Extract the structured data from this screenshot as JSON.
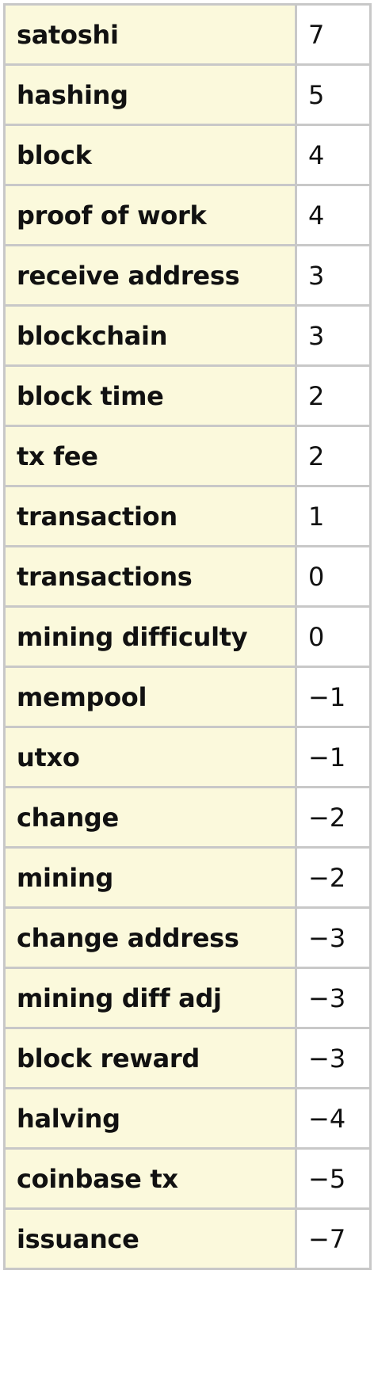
{
  "table": {
    "rows": [
      {
        "term": "satoshi",
        "score": "7"
      },
      {
        "term": "hashing",
        "score": "5"
      },
      {
        "term": "block",
        "score": "4"
      },
      {
        "term": "proof of work",
        "score": "4"
      },
      {
        "term": "receive address",
        "score": "3"
      },
      {
        "term": "blockchain",
        "score": "3"
      },
      {
        "term": "block time",
        "score": "2"
      },
      {
        "term": "tx fee",
        "score": "2"
      },
      {
        "term": "transaction",
        "score": "1"
      },
      {
        "term": "transactions",
        "score": "0"
      },
      {
        "term": "mining difficulty",
        "score": "0"
      },
      {
        "term": "mempool",
        "score": "−1"
      },
      {
        "term": "utxo",
        "score": "−1"
      },
      {
        "term": "change",
        "score": "−2"
      },
      {
        "term": "mining",
        "score": "−2"
      },
      {
        "term": "change address",
        "score": "−3"
      },
      {
        "term": "mining diff adj",
        "score": "−3"
      },
      {
        "term": "block reward",
        "score": "−3"
      },
      {
        "term": "halving",
        "score": "−4"
      },
      {
        "term": "coinbase tx",
        "score": "−5"
      },
      {
        "term": "issuance",
        "score": "−7"
      }
    ]
  },
  "colors": {
    "term_cell_bg": "#fbf9dc",
    "score_cell_bg": "#ffffff",
    "border": "#c8c8c8",
    "text": "#111111"
  }
}
